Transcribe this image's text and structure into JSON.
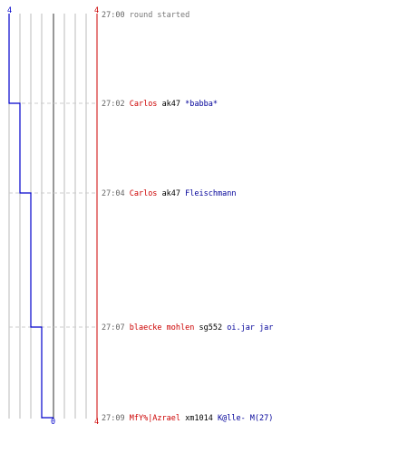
{
  "colors": {
    "killer": "#cc0000",
    "victim": "#000099",
    "time": "#666666",
    "team_blue_line": "#0000cc",
    "team_red_line": "#cc0000",
    "grid": "#bbbbbb",
    "center": "#777777",
    "separator": "#cccccc"
  },
  "score_labels": {
    "blue_top": "4",
    "red_top": "4",
    "center_bottom": "0",
    "red_bottom": "4"
  },
  "events": [
    {
      "time": "27:00",
      "note": "round started"
    },
    {
      "time": "27:02",
      "killer": "Carlos",
      "weapon": "ak47",
      "victim": "*babba*"
    },
    {
      "time": "27:04",
      "killer": "Carlos",
      "weapon": "ak47",
      "victim": "Fleischmann"
    },
    {
      "time": "27:07",
      "killer": "blaecke mohlen",
      "weapon": "sg552",
      "victim": "oi.jar jar"
    },
    {
      "time": "27:09",
      "killer": "MfY%|Azrael",
      "weapon": "xm1014",
      "victim": "K@lle- M(27)"
    }
  ]
}
